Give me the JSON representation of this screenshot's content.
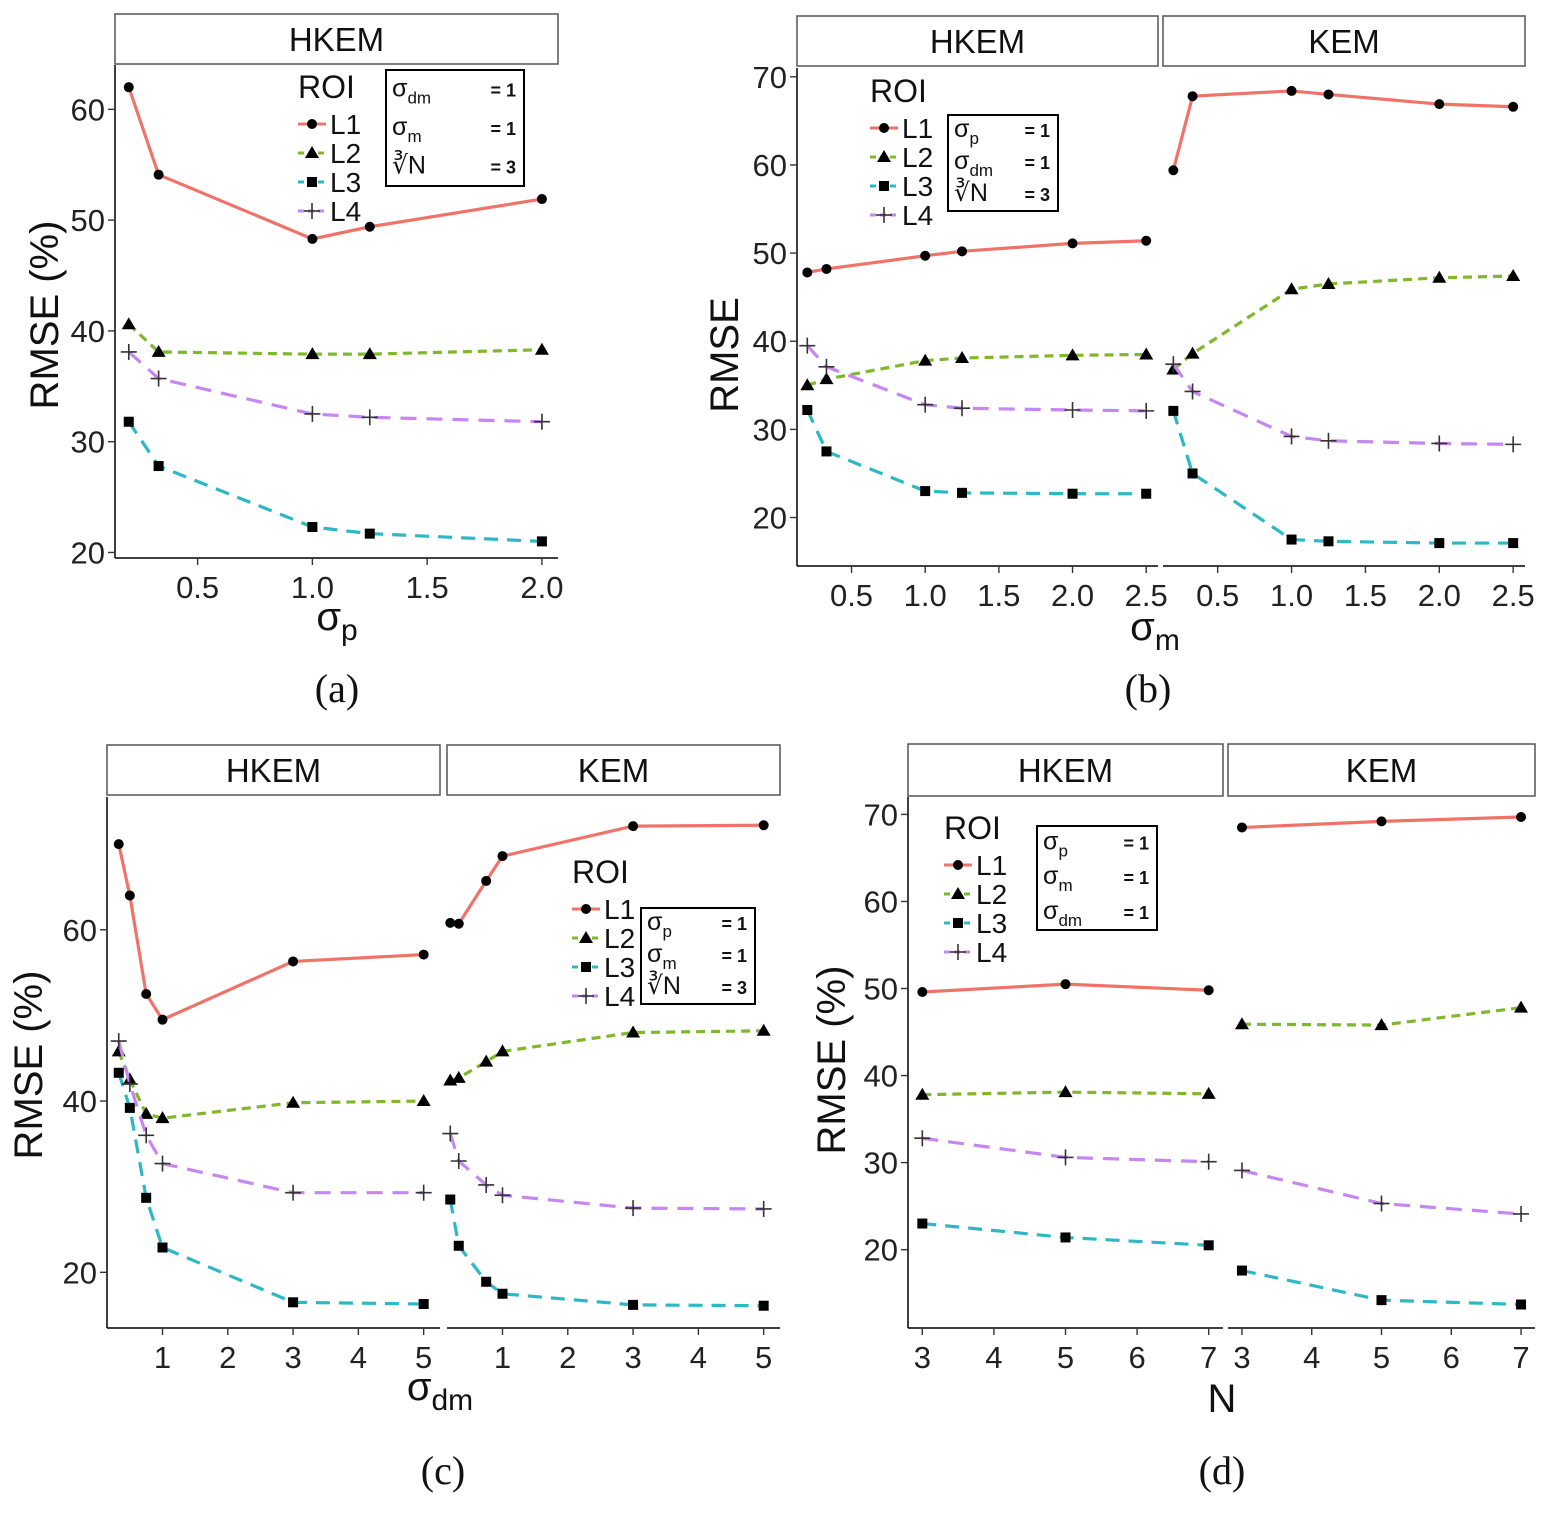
{
  "colors": {
    "L1": "#f0736a",
    "L2": "#7fb82a",
    "L3": "#2cb8c4",
    "L4": "#c687f0",
    "marker": "#000000",
    "frame": "#000000"
  },
  "legend": {
    "title": "ROI",
    "items": [
      "L1",
      "L2",
      "L3",
      "L4"
    ]
  },
  "chart_data": [
    {
      "type": "line",
      "caption": "(a)",
      "xlabel_main": "σ",
      "xlabel_sub": "p",
      "ylabel": "RMSE (%)",
      "ylim": [
        19.5,
        64
      ],
      "xlim": [
        0.14,
        2.07
      ],
      "yticks": [
        20,
        30,
        40,
        50,
        60
      ],
      "xticks": [
        0.5,
        1.0,
        1.5,
        2.0
      ],
      "xtick_labels": [
        "0.5",
        "1.0",
        "1.5",
        "2.0"
      ],
      "params": [
        {
          "main": "σ",
          "sub": "dm",
          "value": "= 1"
        },
        {
          "main": "σ",
          "sub": "m",
          "value": "= 1"
        },
        {
          "main": "∛N",
          "sub": "",
          "value": "= 3"
        }
      ],
      "panels": [
        {
          "strip": "HKEM",
          "x": [
            0.2,
            0.33,
            1.0,
            1.25,
            2.0
          ],
          "series": [
            {
              "name": "L1",
              "values": [
                62.0,
                54.1,
                48.3,
                49.4,
                51.9
              ]
            },
            {
              "name": "L2",
              "values": [
                40.6,
                38.1,
                37.9,
                37.9,
                38.3
              ]
            },
            {
              "name": "L3",
              "values": [
                31.8,
                27.8,
                22.3,
                21.7,
                21.0
              ]
            },
            {
              "name": "L4",
              "values": [
                38.1,
                35.7,
                32.5,
                32.2,
                31.8
              ]
            }
          ]
        }
      ]
    },
    {
      "type": "line",
      "caption": "(b)",
      "xlabel_main": "σ",
      "xlabel_sub": "m",
      "ylabel": "RMSE",
      "ylim": [
        14.5,
        71
      ],
      "xlim": [
        0.13,
        2.58
      ],
      "yticks": [
        20,
        30,
        40,
        50,
        60,
        70
      ],
      "xticks": [
        0.5,
        1.0,
        1.5,
        2.0,
        2.5
      ],
      "xtick_labels": [
        "0.5",
        "1.0",
        "1.5",
        "2.0",
        "2.5"
      ],
      "params": [
        {
          "main": "σ",
          "sub": "p",
          "value": "= 1"
        },
        {
          "main": "σ",
          "sub": "dm",
          "value": "= 1"
        },
        {
          "main": "∛N",
          "sub": "",
          "value": "= 3"
        }
      ],
      "panels": [
        {
          "strip": "HKEM",
          "x": [
            0.2,
            0.33,
            1.0,
            1.25,
            2.0,
            2.5
          ],
          "series": [
            {
              "name": "L1",
              "values": [
                47.8,
                48.2,
                49.7,
                50.2,
                51.1,
                51.4
              ]
            },
            {
              "name": "L2",
              "values": [
                35.0,
                35.7,
                37.8,
                38.1,
                38.4,
                38.5
              ]
            },
            {
              "name": "L3",
              "values": [
                32.2,
                27.5,
                23.0,
                22.8,
                22.7,
                22.7
              ]
            },
            {
              "name": "L4",
              "values": [
                39.5,
                37.1,
                32.8,
                32.4,
                32.2,
                32.1
              ]
            }
          ]
        },
        {
          "strip": "KEM",
          "x": [
            0.2,
            0.33,
            1.0,
            1.25,
            2.0,
            2.5
          ],
          "series": [
            {
              "name": "L1",
              "values": [
                59.4,
                67.8,
                68.4,
                68.0,
                66.9,
                66.6
              ]
            },
            {
              "name": "L2",
              "values": [
                36.8,
                38.6,
                45.9,
                46.5,
                47.2,
                47.4
              ]
            },
            {
              "name": "L3",
              "values": [
                32.1,
                25.0,
                17.5,
                17.3,
                17.1,
                17.1
              ]
            },
            {
              "name": "L4",
              "values": [
                37.4,
                34.3,
                29.2,
                28.7,
                28.4,
                28.3
              ]
            }
          ]
        }
      ]
    },
    {
      "type": "line",
      "caption": "(c)",
      "xlabel_main": "σ",
      "xlabel_sub": "dm",
      "ylabel": "RMSE (%)",
      "ylim": [
        13.5,
        75.5
      ],
      "xlim": [
        0.15,
        5.25
      ],
      "yticks": [
        20,
        40,
        60
      ],
      "xticks": [
        1,
        2,
        3,
        4,
        5
      ],
      "xtick_labels": [
        "1",
        "2",
        "3",
        "4",
        "5"
      ],
      "params": [
        {
          "main": "σ",
          "sub": "p",
          "value": "= 1"
        },
        {
          "main": "σ",
          "sub": "m",
          "value": "= 1"
        },
        {
          "main": "∛N",
          "sub": "",
          "value": "= 3"
        }
      ],
      "panels": [
        {
          "strip": "HKEM",
          "x": [
            0.2,
            0.25,
            0.33,
            0.5,
            0.75,
            1.0,
            3.0,
            5.0
          ],
          "series": [
            {
              "name": "L1",
              "values": [
                null,
                null,
                70.0,
                64.0,
                52.5,
                49.5,
                56.3,
                57.1
              ]
            },
            {
              "name": "L2",
              "values": [
                null,
                null,
                45.8,
                42.5,
                38.5,
                38.0,
                39.8,
                40.0
              ]
            },
            {
              "name": "L3",
              "values": [
                null,
                null,
                43.3,
                39.2,
                28.7,
                22.9,
                16.5,
                16.3
              ]
            },
            {
              "name": "L4",
              "values": [
                null,
                null,
                47.0,
                42.0,
                36.0,
                32.7,
                29.3,
                29.3
              ]
            }
          ]
        },
        {
          "strip": "KEM",
          "x": [
            0.2,
            0.33,
            0.75,
            1.0,
            3.0,
            5.0
          ],
          "series": [
            {
              "name": "L1",
              "values": [
                60.8,
                60.7,
                65.7,
                68.6,
                72.1,
                72.2
              ]
            },
            {
              "name": "L2",
              "values": [
                42.4,
                42.7,
                44.6,
                45.8,
                48.0,
                48.2
              ]
            },
            {
              "name": "L3",
              "values": [
                28.5,
                23.1,
                18.9,
                17.5,
                16.2,
                16.1
              ]
            },
            {
              "name": "L4",
              "values": [
                36.2,
                33.0,
                30.2,
                29.0,
                27.5,
                27.4
              ]
            }
          ]
        }
      ]
    },
    {
      "type": "line",
      "caption": "(d)",
      "xlabel_main": "N",
      "xlabel_sub": "",
      "ylabel": "RMSE (%)",
      "ylim": [
        11.0,
        72.0
      ],
      "xlim": [
        2.8,
        7.2
      ],
      "yticks": [
        20,
        30,
        40,
        50,
        60,
        70
      ],
      "xticks": [
        3,
        4,
        5,
        6,
        7
      ],
      "xtick_labels": [
        "3",
        "4",
        "5",
        "6",
        "7"
      ],
      "params": [
        {
          "main": "σ",
          "sub": "p",
          "value": "= 1"
        },
        {
          "main": "σ",
          "sub": "m",
          "value": "= 1"
        },
        {
          "main": "σ",
          "sub": "dm",
          "value": "= 1"
        }
      ],
      "panels": [
        {
          "strip": "HKEM",
          "x": [
            3,
            5,
            7
          ],
          "series": [
            {
              "name": "L1",
              "values": [
                49.6,
                50.5,
                49.8
              ]
            },
            {
              "name": "L2",
              "values": [
                37.8,
                38.1,
                37.9
              ]
            },
            {
              "name": "L3",
              "values": [
                23.0,
                21.4,
                20.5
              ]
            },
            {
              "name": "L4",
              "values": [
                32.8,
                30.6,
                30.1
              ]
            }
          ]
        },
        {
          "strip": "KEM",
          "x": [
            3,
            5,
            7
          ],
          "series": [
            {
              "name": "L1",
              "values": [
                68.5,
                69.2,
                69.7
              ]
            },
            {
              "name": "L2",
              "values": [
                45.9,
                45.8,
                47.8
              ]
            },
            {
              "name": "L3",
              "values": [
                17.6,
                14.2,
                13.7
              ]
            },
            {
              "name": "L4",
              "values": [
                29.1,
                25.3,
                24.1
              ]
            }
          ]
        }
      ]
    }
  ]
}
